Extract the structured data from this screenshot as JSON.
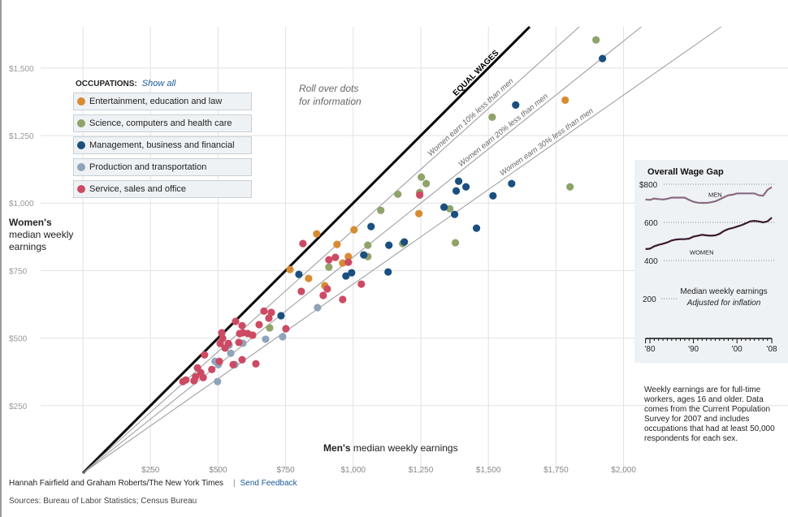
{
  "chart_data": [
    {
      "type": "scatter",
      "xlabel_bold": "Men's",
      "xlabel_rest": " median weekly earnings",
      "ylabel_bold": "Women's",
      "ylabel_rest": "median weekly earnings",
      "xlim": [
        0,
        2000
      ],
      "ylim": [
        0,
        1650
      ],
      "x_ticks": [
        250,
        500,
        750,
        1000,
        1250,
        1500,
        1750,
        2000
      ],
      "x_tick_labels": [
        "$250",
        "$500",
        "$750",
        "$1,000",
        "$1,250",
        "$1,500",
        "$1,750",
        "$2,000"
      ],
      "y_ticks": [
        250,
        500,
        750,
        1000,
        1250,
        1500
      ],
      "y_tick_labels": [
        "$250",
        "$500",
        "$750",
        "$1,000",
        "$1,250",
        "$1,500"
      ],
      "grid": true,
      "reference_lines": [
        {
          "ratio": 1.0,
          "label": "EQUAL WAGES"
        },
        {
          "ratio": 0.9,
          "label": "Women earn 10% less than men"
        },
        {
          "ratio": 0.8,
          "label": "Women earn 20% less than men"
        },
        {
          "ratio": 0.7,
          "label": "Women earn 30% less than men"
        }
      ],
      "series": [
        {
          "name": "Entertainment, education and law",
          "color": "#d98b33",
          "points": [
            [
              1784,
              1381
            ],
            [
              865,
              886
            ],
            [
              1003,
              901
            ],
            [
              940,
              847
            ],
            [
              766,
              754
            ],
            [
              982,
              802
            ],
            [
              961,
              778
            ],
            [
              835,
              721
            ],
            [
              895,
              694
            ],
            [
              1243,
              961
            ]
          ]
        },
        {
          "name": "Science, computers and health care",
          "color": "#8fa36a",
          "points": [
            [
              1898,
              1604
            ],
            [
              1514,
              1318
            ],
            [
              1802,
              1060
            ],
            [
              1357,
              979
            ],
            [
              1252,
              1096
            ],
            [
              1270,
              1072
            ],
            [
              1165,
              1033
            ],
            [
              1246,
              1039
            ],
            [
              1102,
              973
            ],
            [
              1378,
              853
            ],
            [
              1054,
              844
            ],
            [
              1183,
              850
            ],
            [
              1054,
              802
            ],
            [
              910,
              763
            ],
            [
              691,
              538
            ]
          ]
        },
        {
          "name": "Management, business and financial",
          "color": "#1a4f80",
          "points": [
            [
              1922,
              1535
            ],
            [
              1601,
              1363
            ],
            [
              1390,
              1081
            ],
            [
              1417,
              1060
            ],
            [
              1381,
              1045
            ],
            [
              1586,
              1072
            ],
            [
              1517,
              1027
            ],
            [
              1336,
              985
            ],
            [
              1375,
              958
            ],
            [
              1456,
              907
            ],
            [
              1066,
              913
            ],
            [
              1132,
              844
            ],
            [
              1189,
              856
            ],
            [
              1039,
              808
            ],
            [
              799,
              736
            ],
            [
              973,
              730
            ],
            [
              994,
              742
            ],
            [
              1129,
              745
            ],
            [
              733,
              583
            ]
          ]
        },
        {
          "name": "Production and transportation",
          "color": "#8ea4ba",
          "points": [
            [
              868,
              613
            ],
            [
              739,
              505
            ],
            [
              676,
              496
            ],
            [
              592,
              481
            ],
            [
              547,
              444
            ],
            [
              489,
              414
            ],
            [
              501,
              402
            ],
            [
              562,
              402
            ],
            [
              498,
              339
            ],
            [
              541,
              474
            ]
          ]
        },
        {
          "name": "Service, sales and office",
          "color": "#cc4a63",
          "points": [
            [
              670,
              600
            ],
            [
              697,
              595
            ],
            [
              688,
              574
            ],
            [
              565,
              562
            ],
            [
              589,
              546
            ],
            [
              652,
              550
            ],
            [
              751,
              535
            ],
            [
              514,
              520
            ],
            [
              580,
              517
            ],
            [
              592,
              520
            ],
            [
              610,
              517
            ],
            [
              628,
              511
            ],
            [
              517,
              499
            ],
            [
              508,
              480
            ],
            [
              538,
              480
            ],
            [
              577,
              484
            ],
            [
              526,
              463
            ],
            [
              450,
              438
            ],
            [
              505,
              414
            ],
            [
              589,
              420
            ],
            [
              640,
              405
            ],
            [
              556,
              402
            ],
            [
              424,
              390
            ],
            [
              477,
              384
            ],
            [
              436,
              372
            ],
            [
              417,
              357
            ],
            [
              445,
              354
            ],
            [
              411,
              342
            ],
            [
              370,
              339
            ],
            [
              381,
              345
            ],
            [
              1246,
              1030
            ],
            [
              814,
              850
            ],
            [
              910,
              790
            ],
            [
              934,
              799
            ],
            [
              982,
              781
            ],
            [
              808,
              673
            ],
            [
              889,
              658
            ],
            [
              904,
              682
            ],
            [
              961,
              643
            ],
            [
              1030,
              700
            ]
          ]
        }
      ]
    },
    {
      "type": "line",
      "title": "Overall Wage Gap",
      "x": [
        1979,
        1980,
        1981,
        1982,
        1983,
        1984,
        1985,
        1986,
        1987,
        1988,
        1989,
        1990,
        1991,
        1992,
        1993,
        1994,
        1995,
        1996,
        1997,
        1998,
        1999,
        2000,
        2001,
        2002,
        2003,
        2004,
        2005,
        2006,
        2007,
        2008
      ],
      "series": [
        {
          "name": "MEN",
          "color": "#8a6a80",
          "values": [
            720,
            718,
            725,
            722,
            720,
            724,
            730,
            730,
            730,
            730,
            718,
            708,
            703,
            702,
            702,
            705,
            710,
            720,
            732,
            742,
            745,
            752,
            752,
            752,
            752,
            752,
            742,
            740,
            770,
            785
          ]
        },
        {
          "name": "WOMEN",
          "color": "#3a1a2e",
          "values": [
            460,
            462,
            475,
            482,
            488,
            495,
            505,
            510,
            512,
            512,
            515,
            525,
            530,
            535,
            532,
            530,
            532,
            540,
            555,
            565,
            570,
            578,
            585,
            595,
            605,
            608,
            605,
            600,
            605,
            625
          ]
        }
      ],
      "ylim": [
        0,
        800
      ],
      "y_ticks": [
        200,
        400,
        600,
        800
      ],
      "y_tick_labels": [
        "200",
        "400",
        "600",
        "$800"
      ],
      "x_tick_labels": [
        {
          "year": 1980,
          "label": "'80"
        },
        {
          "year": 1990,
          "label": "'90"
        },
        {
          "year": 2000,
          "label": "'00"
        },
        {
          "year": 2008,
          "label": "'08"
        }
      ],
      "xlim": [
        1979,
        2008
      ],
      "annotation_1": "Median weekly earnings",
      "annotation_2": "Adjusted for inflation"
    }
  ],
  "legend": {
    "heading": "OCCUPATIONS:",
    "show_all": "Show all"
  },
  "hint": "Roll over dots for information",
  "note": "Weekly earnings are for full-time workers, ages 16 and older. Data comes from the Current Population Survey for 2007 and includes occupations that had at least 50,000 respondents for each sex.",
  "footer": {
    "credit": "Hannah Fairfield and Graham Roberts/The New York Times",
    "separator": "|",
    "feedback": "Send Feedback",
    "sources": "Sources: Bureau of Labor Statistics; Census Bureau"
  }
}
